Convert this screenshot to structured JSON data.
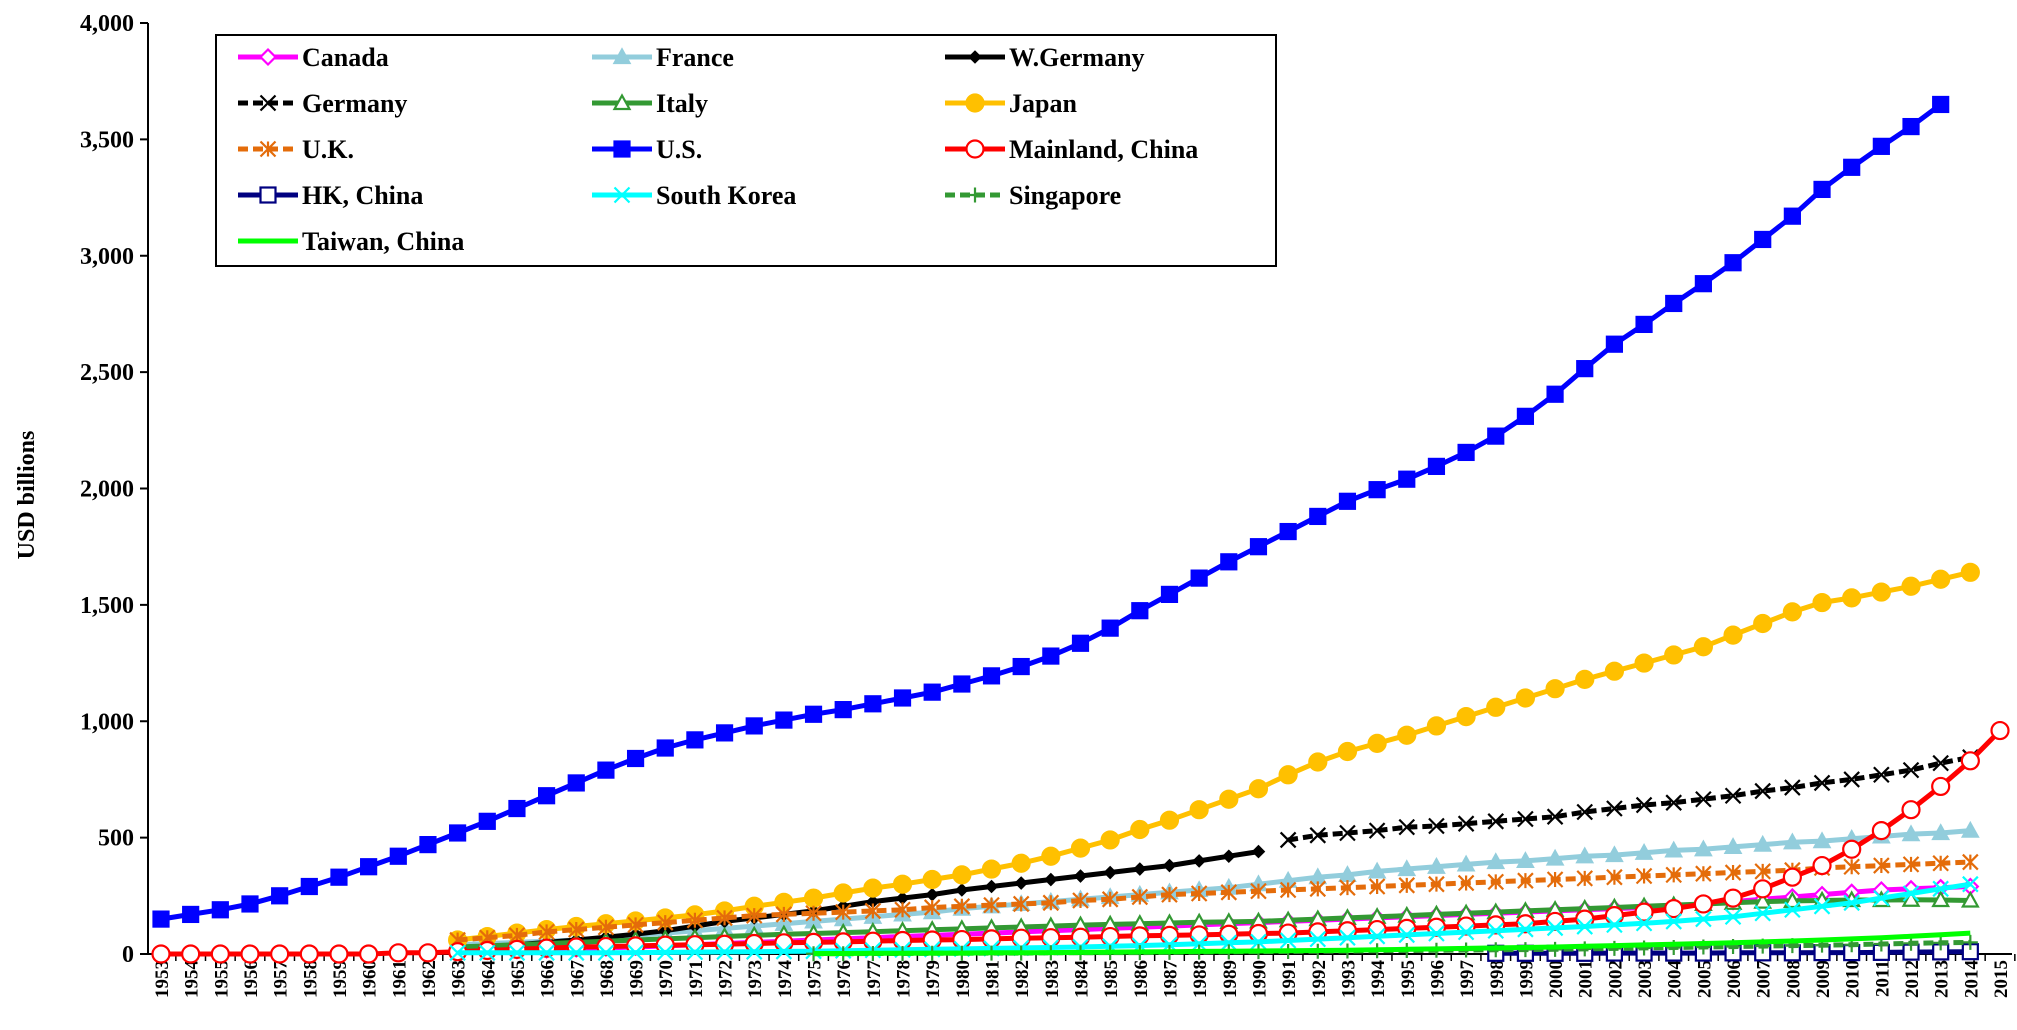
{
  "chart_data": {
    "type": "line",
    "y_label": "USD billions",
    "categories": [
      "1953",
      "1954",
      "1955",
      "1956",
      "1957",
      "1958",
      "1959",
      "1960",
      "1961",
      "1962",
      "1963",
      "1964",
      "1965",
      "1966",
      "1967",
      "1968",
      "1969",
      "1970",
      "1971",
      "1972",
      "1973",
      "1974",
      "1975",
      "1976",
      "1977",
      "1978",
      "1979",
      "1980",
      "1981",
      "1982",
      "1983",
      "1984",
      "1985",
      "1986",
      "1987",
      "1988",
      "1989",
      "1990",
      "1991",
      "1992",
      "1993",
      "1994",
      "1995",
      "1996",
      "1997",
      "1998",
      "1999",
      "2000",
      "2001",
      "2002",
      "2003",
      "2004",
      "2005",
      "2006",
      "2007",
      "2008",
      "2009",
      "2010",
      "2011",
      "2012",
      "2013",
      "2014",
      "2015"
    ],
    "ylim": [
      0,
      4000
    ],
    "yticks": [
      0,
      500,
      {
        "value": 1000,
        "label": "1,000"
      },
      {
        "value": 1500,
        "label": "1,500"
      },
      {
        "value": 2000,
        "label": "2,000"
      },
      {
        "value": 2500,
        "label": "2,500"
      },
      {
        "value": 3000,
        "label": "3,000"
      },
      {
        "value": 3500,
        "label": "3,500"
      },
      {
        "value": 4000,
        "label": "4,000"
      }
    ],
    "legend": "upper left",
    "series": [
      {
        "name": "Canada",
        "color": "#ff00ff",
        "marker": "diamond",
        "filled": false,
        "dashed": false,
        "values": [
          null,
          null,
          null,
          null,
          null,
          null,
          null,
          null,
          null,
          null,
          10,
          12,
          15,
          18,
          22,
          26,
          30,
          35,
          40,
          45,
          50,
          55,
          60,
          65,
          70,
          75,
          80,
          85,
          90,
          95,
          100,
          105,
          110,
          115,
          120,
          125,
          130,
          135,
          140,
          145,
          150,
          155,
          160,
          165,
          170,
          175,
          180,
          185,
          190,
          195,
          200,
          205,
          215,
          225,
          235,
          245,
          255,
          265,
          275,
          280,
          285,
          290,
          null
        ]
      },
      {
        "name": "France",
        "color": "#92cddc",
        "marker": "triangle",
        "filled": true,
        "dashed": false,
        "values": [
          null,
          null,
          null,
          null,
          null,
          null,
          null,
          null,
          null,
          null,
          40,
          45,
          50,
          55,
          60,
          70,
          80,
          90,
          100,
          110,
          120,
          130,
          140,
          150,
          160,
          170,
          180,
          195,
          205,
          215,
          225,
          235,
          245,
          255,
          265,
          275,
          285,
          300,
          315,
          330,
          340,
          355,
          365,
          375,
          385,
          395,
          400,
          410,
          420,
          425,
          435,
          445,
          450,
          460,
          470,
          480,
          485,
          495,
          505,
          515,
          520,
          530,
          null
        ]
      },
      {
        "name": "W.Germany",
        "color": "#000000",
        "marker": "diamond",
        "filled": true,
        "dashed": false,
        "values": [
          null,
          null,
          null,
          null,
          null,
          null,
          null,
          null,
          null,
          null,
          20,
          30,
          40,
          50,
          60,
          72,
          85,
          100,
          120,
          140,
          155,
          170,
          185,
          205,
          225,
          240,
          255,
          275,
          290,
          305,
          320,
          335,
          350,
          365,
          380,
          400,
          420,
          440,
          null,
          null,
          null,
          null,
          null,
          null,
          null,
          null,
          null,
          null,
          null,
          null,
          null,
          null,
          null,
          null,
          null,
          null,
          null,
          null,
          null,
          null,
          null,
          null,
          null
        ]
      },
      {
        "name": "Germany",
        "color": "#000000",
        "marker": "x",
        "filled": false,
        "dashed": true,
        "values": [
          null,
          null,
          null,
          null,
          null,
          null,
          null,
          null,
          null,
          null,
          null,
          null,
          null,
          null,
          null,
          null,
          null,
          null,
          null,
          null,
          null,
          null,
          null,
          null,
          null,
          null,
          null,
          null,
          null,
          null,
          null,
          null,
          null,
          null,
          null,
          null,
          null,
          null,
          490,
          510,
          520,
          530,
          545,
          550,
          560,
          570,
          580,
          590,
          610,
          625,
          640,
          650,
          665,
          680,
          700,
          715,
          735,
          750,
          770,
          790,
          820,
          845,
          null
        ]
      },
      {
        "name": "Italy",
        "color": "#339933",
        "marker": "triangle",
        "filled": false,
        "dashed": false,
        "values": [
          null,
          null,
          null,
          null,
          null,
          null,
          null,
          null,
          null,
          null,
          30,
          35,
          40,
          45,
          50,
          55,
          60,
          65,
          70,
          75,
          80,
          85,
          88,
          92,
          96,
          100,
          104,
          108,
          112,
          116,
          120,
          124,
          127,
          130,
          133,
          136,
          138,
          140,
          145,
          150,
          155,
          160,
          165,
          170,
          175,
          180,
          185,
          190,
          195,
          200,
          205,
          210,
          215,
          220,
          225,
          228,
          230,
          232,
          232,
          233,
          232,
          230,
          null
        ]
      },
      {
        "name": "Japan",
        "color": "#ffc000",
        "marker": "circle",
        "filled": true,
        "dashed": false,
        "values": [
          null,
          null,
          null,
          null,
          null,
          null,
          null,
          null,
          null,
          null,
          60,
          75,
          90,
          105,
          118,
          130,
          142,
          155,
          168,
          185,
          205,
          222,
          240,
          262,
          283,
          300,
          320,
          340,
          365,
          390,
          420,
          455,
          490,
          535,
          575,
          620,
          665,
          710,
          770,
          825,
          870,
          905,
          940,
          980,
          1020,
          1060,
          1100,
          1140,
          1180,
          1215,
          1250,
          1285,
          1320,
          1370,
          1420,
          1470,
          1510,
          1530,
          1555,
          1580,
          1610,
          1640,
          null
        ]
      },
      {
        "name": "U.K.",
        "color": "#e46c0a",
        "marker": "asterisk",
        "filled": false,
        "dashed": true,
        "values": [
          null,
          null,
          null,
          null,
          null,
          null,
          null,
          null,
          null,
          null,
          60,
          70,
          80,
          95,
          105,
          115,
          125,
          135,
          145,
          155,
          165,
          170,
          175,
          180,
          185,
          190,
          200,
          205,
          210,
          215,
          220,
          230,
          235,
          245,
          255,
          260,
          265,
          270,
          275,
          280,
          285,
          290,
          295,
          300,
          305,
          310,
          315,
          320,
          325,
          330,
          335,
          340,
          345,
          350,
          355,
          360,
          370,
          375,
          380,
          385,
          390,
          395,
          null
        ]
      },
      {
        "name": "U.S.",
        "color": "#0000ff",
        "marker": "square",
        "filled": true,
        "dashed": false,
        "values": [
          150,
          170,
          190,
          215,
          250,
          290,
          330,
          375,
          420,
          470,
          520,
          570,
          625,
          680,
          735,
          790,
          840,
          885,
          920,
          950,
          980,
          1005,
          1030,
          1050,
          1075,
          1100,
          1125,
          1160,
          1195,
          1235,
          1280,
          1335,
          1400,
          1475,
          1545,
          1615,
          1685,
          1750,
          1815,
          1880,
          1945,
          1995,
          2040,
          2095,
          2155,
          2225,
          2310,
          2405,
          2515,
          2620,
          2705,
          2795,
          2880,
          2970,
          3070,
          3170,
          3285,
          3380,
          3470,
          3555,
          3650,
          null,
          null
        ]
      },
      {
        "name": "Mainland, China",
        "color": "#ff0000",
        "marker": "circle",
        "filled": false,
        "dashed": false,
        "values": [
          0,
          0,
          0,
          0,
          0,
          0,
          0,
          0,
          5,
          5,
          10,
          15,
          20,
          25,
          30,
          32,
          35,
          38,
          40,
          42,
          45,
          48,
          50,
          52,
          55,
          58,
          60,
          62,
          65,
          68,
          70,
          72,
          75,
          78,
          80,
          82,
          85,
          88,
          90,
          95,
          100,
          105,
          110,
          115,
          120,
          125,
          130,
          140,
          150,
          165,
          180,
          195,
          215,
          240,
          280,
          330,
          380,
          450,
          530,
          620,
          720,
          830,
          960
        ]
      },
      {
        "name": "HK, China",
        "color": "#000080",
        "marker": "square",
        "filled": false,
        "dashed": false,
        "values": [
          null,
          null,
          null,
          null,
          null,
          null,
          null,
          null,
          null,
          null,
          null,
          null,
          null,
          null,
          null,
          null,
          null,
          null,
          null,
          null,
          null,
          null,
          null,
          null,
          null,
          null,
          null,
          null,
          null,
          null,
          null,
          null,
          null,
          null,
          null,
          null,
          null,
          null,
          null,
          null,
          null,
          null,
          null,
          null,
          null,
          3,
          3,
          3,
          3,
          4,
          4,
          4,
          4,
          5,
          5,
          5,
          6,
          6,
          7,
          8,
          9,
          10,
          null
        ]
      },
      {
        "name": "South Korea",
        "color": "#00ffff",
        "marker": "x",
        "filled": false,
        "dashed": false,
        "values": [
          null,
          null,
          null,
          null,
          null,
          null,
          null,
          null,
          null,
          null,
          5,
          5,
          5,
          5,
          5,
          5,
          6,
          7,
          8,
          9,
          10,
          11,
          12,
          14,
          16,
          18,
          20,
          22,
          24,
          26,
          28,
          30,
          33,
          36,
          40,
          44,
          48,
          52,
          58,
          64,
          70,
          76,
          82,
          88,
          94,
          100,
          106,
          112,
          118,
          125,
          132,
          140,
          150,
          160,
          175,
          190,
          205,
          220,
          240,
          260,
          280,
          300,
          null
        ]
      },
      {
        "name": "Singapore",
        "color": "#339933",
        "marker": "plus",
        "filled": false,
        "dashed": true,
        "values": [
          null,
          null,
          null,
          null,
          null,
          null,
          null,
          null,
          null,
          null,
          null,
          null,
          null,
          null,
          null,
          null,
          null,
          null,
          null,
          null,
          null,
          null,
          1,
          1,
          2,
          2,
          3,
          3,
          4,
          4,
          5,
          5,
          6,
          6,
          7,
          8,
          9,
          10,
          11,
          12,
          13,
          14,
          15,
          16,
          17,
          18,
          19,
          20,
          22,
          24,
          26,
          28,
          30,
          32,
          34,
          36,
          38,
          40,
          43,
          46,
          48,
          50,
          null
        ]
      },
      {
        "name": "Taiwan, China",
        "color": "#00ff00",
        "marker": "none",
        "filled": false,
        "dashed": false,
        "values": [
          null,
          null,
          null,
          null,
          null,
          null,
          null,
          null,
          null,
          null,
          null,
          null,
          null,
          null,
          null,
          null,
          null,
          null,
          null,
          null,
          null,
          null,
          2,
          2,
          3,
          3,
          4,
          4,
          5,
          5,
          6,
          7,
          8,
          9,
          10,
          11,
          12,
          13,
          14,
          15,
          16,
          18,
          20,
          22,
          24,
          26,
          28,
          30,
          33,
          36,
          39,
          42,
          45,
          48,
          52,
          56,
          60,
          65,
          70,
          76,
          83,
          90,
          null
        ]
      }
    ]
  }
}
